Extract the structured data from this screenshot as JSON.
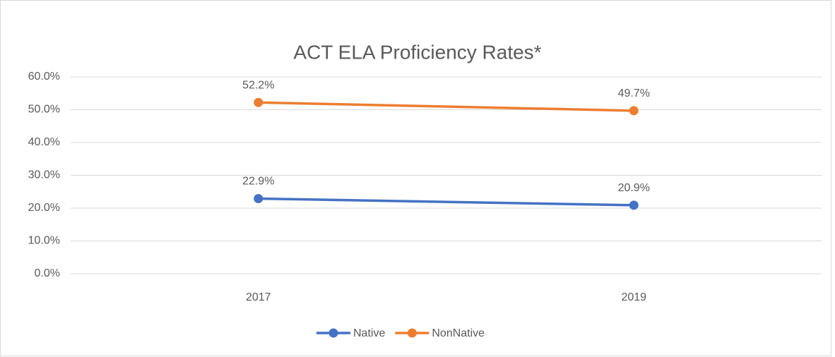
{
  "chart_data": {
    "type": "line",
    "title": "ACT ELA Proficiency Rates*",
    "categories": [
      "2017",
      "2019"
    ],
    "series": [
      {
        "name": "Native",
        "color": "#4472c4",
        "values": [
          22.9,
          20.9
        ],
        "value_labels": [
          "22.9%",
          "20.9%"
        ]
      },
      {
        "name": "NonNative",
        "color": "#ed7d31",
        "values": [
          52.2,
          49.7
        ],
        "value_labels": [
          "52.2%",
          "49.7%"
        ]
      }
    ],
    "ylim": [
      0,
      60
    ],
    "yticks": [
      {
        "value": 0,
        "label": "0.0%"
      },
      {
        "value": 10,
        "label": "10.0%"
      },
      {
        "value": 20,
        "label": "20.0%"
      },
      {
        "value": 30,
        "label": "30.0%"
      },
      {
        "value": 40,
        "label": "40.0%"
      },
      {
        "value": 50,
        "label": "50.0%"
      },
      {
        "value": 60,
        "label": "60.0%"
      }
    ],
    "grid": true,
    "legend": "bottom"
  }
}
